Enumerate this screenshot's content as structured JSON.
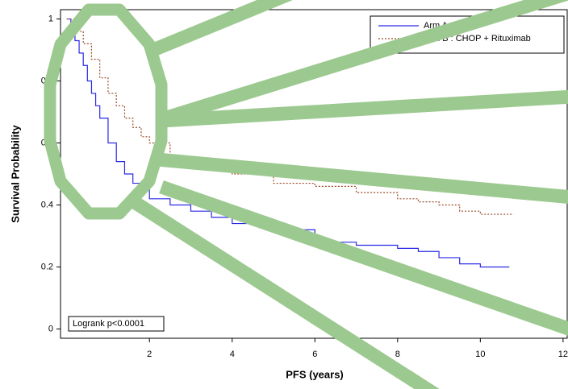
{
  "chart_data": {
    "type": "step",
    "x_label": "PFS (years)",
    "y_label": "Survival Probability",
    "annotation": "Logrank p<0.0001",
    "legend": "upper right",
    "grid": false,
    "xlim": [
      -0.15,
      12.1
    ],
    "ylim": [
      -0.03,
      1.03
    ],
    "xticks": [
      2,
      4,
      6,
      8,
      10,
      12
    ],
    "yticks": [
      0,
      0.2,
      0.4,
      0.6,
      0.8,
      1
    ],
    "series": [
      {
        "name": "Arm A : CHOP",
        "color": "#2a2ae6",
        "style": "solid",
        "x": [
          0,
          0.1,
          0.2,
          0.3,
          0.4,
          0.5,
          0.6,
          0.7,
          0.8,
          1,
          1.2,
          1.4,
          1.6,
          1.8,
          2,
          2.5,
          3,
          3.5,
          4,
          5,
          6,
          7,
          8,
          8.5,
          9,
          9.5,
          10,
          10.7
        ],
        "values": [
          1,
          0.97,
          0.93,
          0.89,
          0.85,
          0.8,
          0.76,
          0.72,
          0.68,
          0.6,
          0.54,
          0.5,
          0.47,
          0.45,
          0.42,
          0.4,
          0.38,
          0.36,
          0.34,
          0.32,
          0.28,
          0.27,
          0.26,
          0.25,
          0.23,
          0.21,
          0.2,
          0.2
        ]
      },
      {
        "name": "Arm B : CHOP + Rituximab",
        "color": "#9a4a24",
        "style": "dotted",
        "x": [
          0,
          0.2,
          0.4,
          0.6,
          0.8,
          1,
          1.2,
          1.4,
          1.6,
          1.8,
          2,
          2.5,
          3,
          3.5,
          4,
          5,
          6,
          7,
          8,
          8.5,
          9,
          9.5,
          10,
          10.8
        ],
        "values": [
          1,
          0.96,
          0.92,
          0.87,
          0.81,
          0.76,
          0.72,
          0.68,
          0.65,
          0.62,
          0.6,
          0.55,
          0.53,
          0.52,
          0.5,
          0.47,
          0.46,
          0.44,
          0.42,
          0.41,
          0.4,
          0.38,
          0.37,
          0.37
        ]
      }
    ]
  }
}
